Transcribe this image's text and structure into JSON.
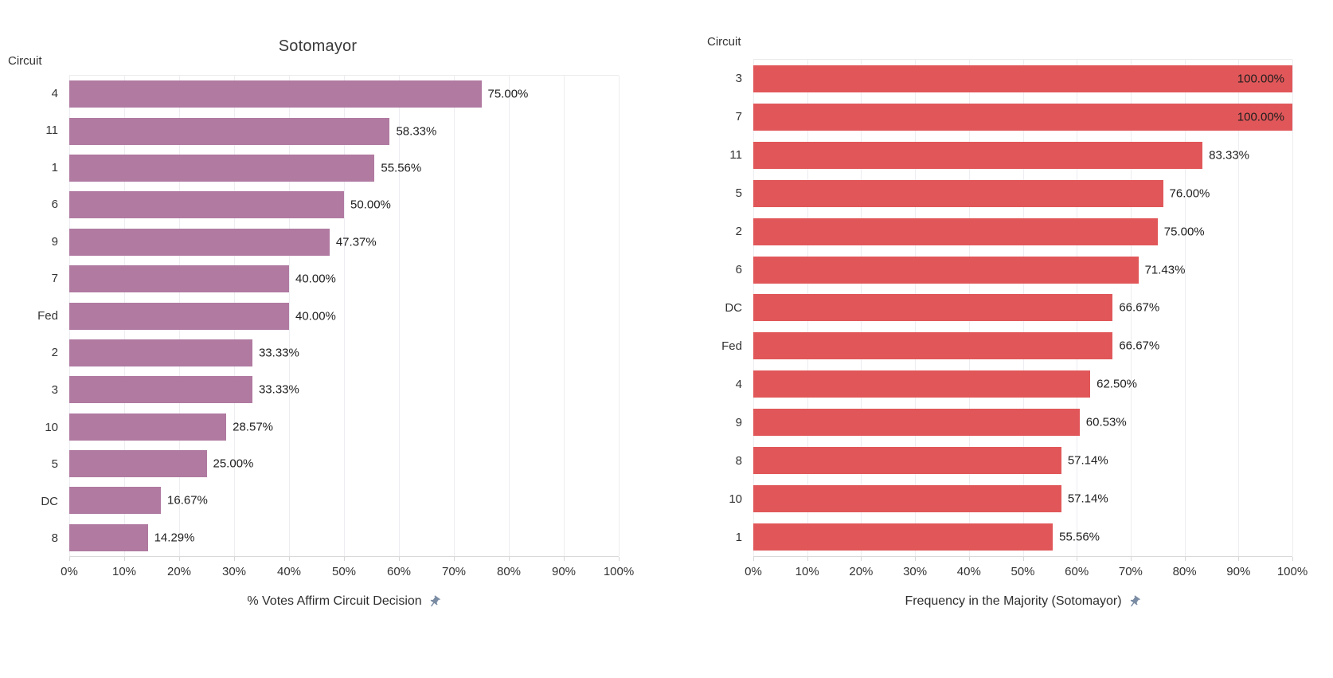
{
  "colors": {
    "pin": "#7a8ca3",
    "purple_bar": "#b07aa1",
    "red_bar": "#e15759"
  },
  "chart_data": [
    {
      "type": "bar",
      "orientation": "horizontal",
      "title": "Sotomayor",
      "field_label": "Circuit",
      "xlabel": "% Votes Affirm Circuit Decision",
      "bar_color": "#b07aa1",
      "xlim": [
        0,
        100
      ],
      "grid": true,
      "tick_labels": [
        "0%",
        "10%",
        "20%",
        "30%",
        "40%",
        "50%",
        "60%",
        "70%",
        "80%",
        "90%",
        "100%"
      ],
      "categories": [
        "4",
        "11",
        "1",
        "6",
        "9",
        "7",
        "Fed",
        "2",
        "3",
        "10",
        "5",
        "DC",
        "8"
      ],
      "values": [
        75.0,
        58.33,
        55.56,
        50.0,
        47.37,
        40.0,
        40.0,
        33.33,
        33.33,
        28.57,
        25.0,
        16.67,
        14.29
      ],
      "value_labels": [
        "75.00%",
        "58.33%",
        "55.56%",
        "50.00%",
        "47.37%",
        "40.00%",
        "40.00%",
        "33.33%",
        "33.33%",
        "28.57%",
        "25.00%",
        "16.67%",
        "14.29%"
      ]
    },
    {
      "type": "bar",
      "orientation": "horizontal",
      "title": "",
      "field_label": "Circuit",
      "xlabel": "Frequency in the Majority (Sotomayor)",
      "bar_color": "#e15759",
      "xlim": [
        0,
        100
      ],
      "grid": true,
      "tick_labels": [
        "0%",
        "10%",
        "20%",
        "30%",
        "40%",
        "50%",
        "60%",
        "70%",
        "80%",
        "90%",
        "100%"
      ],
      "categories": [
        "3",
        "7",
        "11",
        "5",
        "2",
        "6",
        "DC",
        "Fed",
        "4",
        "9",
        "8",
        "10",
        "1"
      ],
      "values": [
        100.0,
        100.0,
        83.33,
        76.0,
        75.0,
        71.43,
        66.67,
        66.67,
        62.5,
        60.53,
        57.14,
        57.14,
        55.56
      ],
      "value_labels": [
        "100.00%",
        "100.00%",
        "83.33%",
        "76.00%",
        "75.00%",
        "71.43%",
        "66.67%",
        "66.67%",
        "62.50%",
        "60.53%",
        "57.14%",
        "57.14%",
        "55.56%"
      ]
    }
  ]
}
